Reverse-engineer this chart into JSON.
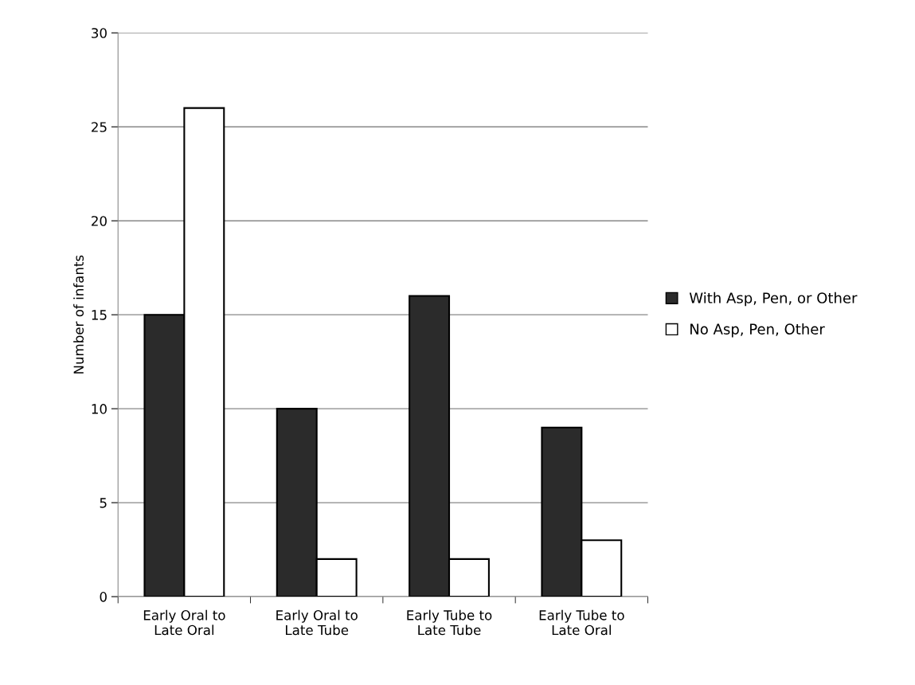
{
  "chart_data": {
    "type": "bar",
    "ylabel": "Number of infants",
    "categories": [
      "Early Oral to\nLate Oral",
      "Early Oral to\nLate Tube",
      "Early Tube to\nLate Tube",
      "Early Tube to\nLate Oral"
    ],
    "series": [
      {
        "name": "With Asp, Pen, or Other",
        "color": "#2b2b2b",
        "values": [
          15,
          10,
          16,
          9
        ]
      },
      {
        "name": "No Asp, Pen, Other",
        "color": "#ffffff",
        "values": [
          26,
          2,
          2,
          3
        ]
      }
    ],
    "ylim": [
      0,
      30
    ],
    "yticks": [
      0,
      5,
      10,
      15,
      20,
      25,
      30
    ],
    "grid": "y",
    "legend": "right"
  }
}
